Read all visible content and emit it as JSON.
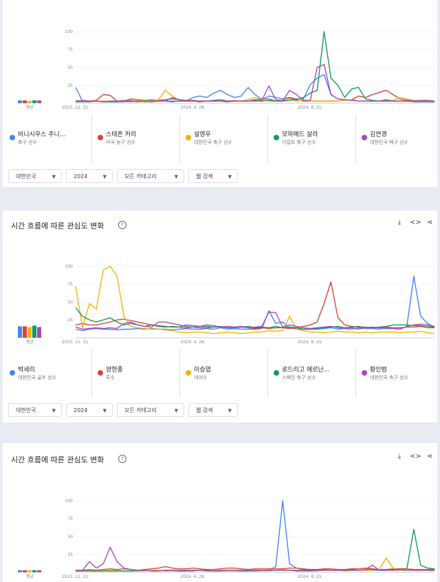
{
  "colors": {
    "blue": "#4285f4",
    "red": "#db4437",
    "yellow": "#f4b400",
    "green": "#0f9d58",
    "purple": "#ab47bc"
  },
  "chart_common": {
    "y_ticks": [
      "100",
      "75",
      "50",
      "25"
    ],
    "x_ticks": [
      "2023. 12. 31.",
      "2024. 4. 28.",
      "2024. 8. 25."
    ],
    "avg_label": "평균"
  },
  "filters": {
    "region": "대한민국",
    "year": "2024",
    "category": "모든 카테고리",
    "search_type": "웹 검색"
  },
  "section": {
    "title": "시간 흐름에 따른 관심도 변화",
    "download_icon": "download-icon",
    "embed_icon": "embed-icon",
    "share_icon": "share-icon"
  },
  "panel1": {
    "legend": [
      {
        "name": "비니시우스 주니...",
        "sub": "축구 선수",
        "color": "#4285f4"
      },
      {
        "name": "스테픈 커리",
        "sub": "미국 농구 선수",
        "color": "#db4437"
      },
      {
        "name": "설영우",
        "sub": "대한민국 축구 선수",
        "color": "#f4b400"
      },
      {
        "name": "모하메드 살라",
        "sub": "이집트 축구 선수",
        "color": "#0f9d58"
      },
      {
        "name": "김연경",
        "sub": "대한민국 배구 선수",
        "color": "#ab47bc"
      }
    ]
  },
  "panel2": {
    "legend": [
      {
        "name": "박세리",
        "sub": "대한민국 골프 선수",
        "color": "#4285f4"
      },
      {
        "name": "양현종",
        "sub": "투수",
        "color": "#db4437"
      },
      {
        "name": "이승엽",
        "sub": "내야수",
        "color": "#f4b400"
      },
      {
        "name": "로드리고 에르난...",
        "sub": "스페인 축구 선수",
        "color": "#0f9d58"
      },
      {
        "name": "황인범",
        "sub": "대한민국 축구 선수",
        "color": "#ab47bc"
      }
    ]
  },
  "chart_data": [
    {
      "type": "line",
      "xlim": [
        0,
        52
      ],
      "ylim": [
        0,
        100
      ],
      "averages": [
        4,
        4,
        3,
        4,
        4
      ],
      "series": [
        {
          "name": "비니시우스 주니...",
          "color": "#4285f4",
          "values": [
            22,
            3,
            3,
            3,
            2,
            2,
            2,
            3,
            2,
            3,
            4,
            5,
            4,
            3,
            3,
            3,
            3,
            8,
            10,
            8,
            14,
            18,
            12,
            8,
            10,
            22,
            12,
            5,
            10,
            8,
            6,
            8,
            6,
            6,
            26,
            35,
            40,
            12,
            6,
            5,
            4,
            3,
            3,
            3,
            3,
            3,
            3,
            3,
            3,
            2,
            2,
            2,
            2
          ]
        },
        {
          "name": "스테픈 커리",
          "color": "#db4437",
          "values": [
            3,
            3,
            3,
            4,
            12,
            11,
            3,
            3,
            6,
            5,
            4,
            3,
            4,
            5,
            6,
            5,
            4,
            4,
            3,
            3,
            3,
            3,
            3,
            3,
            3,
            3,
            4,
            6,
            6,
            3,
            3,
            8,
            4,
            3,
            3,
            3,
            3,
            3,
            3,
            4,
            5,
            10,
            8,
            12,
            15,
            18,
            12,
            6,
            4,
            4,
            3,
            3,
            3
          ]
        },
        {
          "name": "설영우",
          "color": "#f4b400",
          "values": [
            3,
            3,
            3,
            3,
            3,
            3,
            3,
            3,
            4,
            3,
            4,
            3,
            5,
            18,
            10,
            4,
            3,
            3,
            3,
            3,
            3,
            3,
            3,
            4,
            3,
            5,
            8,
            4,
            3,
            3,
            5,
            6,
            3,
            4,
            3,
            3,
            3,
            3,
            3,
            4,
            5,
            3,
            3,
            3,
            3,
            3,
            4,
            8,
            6,
            4,
            3,
            3,
            3
          ]
        },
        {
          "name": "모하메드 살라",
          "color": "#0f9d58",
          "values": [
            2,
            2,
            2,
            3,
            2,
            2,
            2,
            2,
            3,
            2,
            3,
            2,
            3,
            3,
            2,
            3,
            3,
            3,
            2,
            3,
            3,
            3,
            2,
            3,
            3,
            3,
            3,
            3,
            4,
            3,
            3,
            4,
            5,
            8,
            14,
            18,
            100,
            35,
            25,
            8,
            20,
            22,
            6,
            4,
            3,
            3,
            3,
            3,
            3,
            3,
            2,
            2,
            2
          ]
        },
        {
          "name": "김연경",
          "color": "#ab47bc",
          "values": [
            3,
            4,
            3,
            3,
            2,
            3,
            3,
            4,
            3,
            3,
            2,
            3,
            3,
            3,
            8,
            5,
            3,
            3,
            3,
            3,
            4,
            5,
            3,
            3,
            3,
            3,
            5,
            4,
            24,
            5,
            3,
            18,
            12,
            4,
            4,
            50,
            54,
            12,
            6,
            5,
            4,
            3,
            3,
            3,
            3,
            5,
            3,
            3,
            3,
            3,
            4,
            4,
            3
          ]
        }
      ]
    },
    {
      "type": "line",
      "xlim": [
        0,
        52
      ],
      "ylim": [
        0,
        100
      ],
      "averages": [
        16,
        16,
        15,
        17,
        15
      ],
      "series": [
        {
          "name": "박세리",
          "color": "#4285f4",
          "values": [
            12,
            10,
            12,
            13,
            12,
            12,
            11,
            12,
            12,
            13,
            12,
            13,
            12,
            12,
            11,
            12,
            13,
            12,
            12,
            13,
            12,
            14,
            12,
            13,
            12,
            12,
            12,
            13,
            38,
            20,
            22,
            14,
            12,
            12,
            12,
            12,
            13,
            14,
            12,
            13,
            12,
            14,
            13,
            13,
            12,
            14,
            14,
            12,
            16,
            86,
            30,
            20,
            15
          ]
        },
        {
          "name": "양현종",
          "color": "#db4437",
          "values": [
            18,
            20,
            18,
            18,
            20,
            22,
            25,
            26,
            24,
            22,
            20,
            18,
            17,
            16,
            15,
            15,
            14,
            15,
            14,
            14,
            15,
            15,
            14,
            14,
            15,
            14,
            13,
            14,
            13,
            14,
            14,
            13,
            14,
            16,
            18,
            22,
            48,
            78,
            28,
            18,
            16,
            15,
            15,
            14,
            14,
            15,
            14,
            14,
            15,
            15,
            16,
            14,
            14
          ]
        },
        {
          "name": "이승엽",
          "color": "#f4b400",
          "values": [
            72,
            14,
            48,
            40,
            95,
            100,
            86,
            30,
            16,
            14,
            13,
            12,
            12,
            11,
            10,
            8,
            7,
            8,
            8,
            7,
            6,
            7,
            8,
            7,
            6,
            7,
            8,
            8,
            10,
            9,
            10,
            30,
            12,
            10,
            8,
            8,
            7,
            8,
            9,
            8,
            8,
            7,
            8,
            7,
            8,
            8,
            8,
            7,
            8,
            8,
            9,
            7,
            6
          ]
        },
        {
          "name": "로드리고 에르난...",
          "color": "#0f9d58",
          "values": [
            42,
            30,
            25,
            22,
            25,
            28,
            22,
            18,
            20,
            18,
            16,
            18,
            16,
            15,
            16,
            15,
            18,
            17,
            16,
            16,
            15,
            16,
            14,
            14,
            15,
            16,
            14,
            15,
            14,
            16,
            14,
            15,
            14,
            12,
            12,
            13,
            14,
            15,
            16,
            14,
            15,
            16,
            14,
            14,
            15,
            16,
            18,
            18,
            18,
            17,
            17,
            16,
            15
          ]
        },
        {
          "name": "황인범",
          "color": "#ab47bc",
          "values": [
            15,
            12,
            13,
            14,
            13,
            14,
            13,
            20,
            22,
            18,
            16,
            15,
            22,
            22,
            20,
            18,
            16,
            15,
            16,
            18,
            17,
            15,
            16,
            15,
            16,
            14,
            15,
            16,
            36,
            35,
            15,
            18,
            16,
            14,
            13,
            14,
            15,
            16,
            14,
            13,
            14,
            12,
            14,
            15,
            14,
            13,
            13,
            12,
            16,
            18,
            19,
            18,
            16
          ]
        }
      ]
    },
    {
      "type": "line",
      "xlim": [
        0,
        52
      ],
      "ylim": [
        0,
        100
      ],
      "averages": [
        3,
        3,
        3,
        3,
        3
      ],
      "series": [
        {
          "name": "",
          "color": "#4285f4",
          "values": [
            2,
            2,
            2,
            2,
            2,
            2,
            2,
            2,
            2,
            2,
            2,
            3,
            3,
            2,
            2,
            2,
            2,
            3,
            3,
            2,
            2,
            2,
            2,
            2,
            2,
            2,
            3,
            3,
            3,
            8,
            100,
            12,
            6,
            4,
            4,
            4,
            4,
            3,
            3,
            3,
            3,
            3,
            3,
            3,
            3,
            3,
            3,
            3,
            3,
            3,
            3,
            3,
            3
          ]
        },
        {
          "name": "",
          "color": "#db4437",
          "values": [
            3,
            3,
            4,
            3,
            4,
            5,
            4,
            5,
            4,
            3,
            4,
            5,
            6,
            8,
            6,
            5,
            5,
            6,
            5,
            4,
            4,
            5,
            6,
            6,
            5,
            4,
            5,
            5,
            5,
            5,
            5,
            6,
            6,
            5,
            4,
            4,
            5,
            5,
            4,
            4,
            5,
            5,
            6,
            5,
            4,
            4,
            5,
            5,
            5,
            4,
            4,
            4,
            4
          ]
        },
        {
          "name": "",
          "color": "#f4b400",
          "values": [
            2,
            2,
            2,
            2,
            3,
            3,
            3,
            2,
            2,
            2,
            2,
            3,
            3,
            3,
            2,
            2,
            2,
            3,
            3,
            2,
            3,
            3,
            2,
            2,
            3,
            3,
            2,
            2,
            2,
            3,
            4,
            3,
            3,
            3,
            2,
            2,
            3,
            3,
            3,
            2,
            3,
            3,
            3,
            3,
            4,
            20,
            6,
            3,
            3,
            3,
            3,
            3,
            2
          ]
        },
        {
          "name": "",
          "color": "#0f9d58",
          "values": [
            2,
            2,
            2,
            2,
            2,
            2,
            2,
            2,
            2,
            3,
            3,
            2,
            2,
            3,
            3,
            2,
            2,
            2,
            3,
            3,
            2,
            2,
            3,
            3,
            2,
            2,
            2,
            3,
            3,
            3,
            3,
            3,
            2,
            2,
            2,
            3,
            3,
            3,
            3,
            3,
            3,
            3,
            4,
            4,
            3,
            3,
            4,
            4,
            5,
            60,
            10,
            6,
            5
          ]
        },
        {
          "name": "",
          "color": "#ab47bc",
          "values": [
            2,
            3,
            15,
            6,
            12,
            35,
            15,
            6,
            4,
            3,
            3,
            2,
            2,
            3,
            3,
            3,
            3,
            3,
            3,
            2,
            2,
            3,
            3,
            3,
            3,
            3,
            3,
            3,
            3,
            3,
            3,
            3,
            3,
            3,
            3,
            3,
            3,
            3,
            3,
            3,
            4,
            3,
            4,
            10,
            3,
            3,
            3,
            4,
            3,
            3,
            3,
            3,
            3
          ]
        }
      ]
    }
  ]
}
